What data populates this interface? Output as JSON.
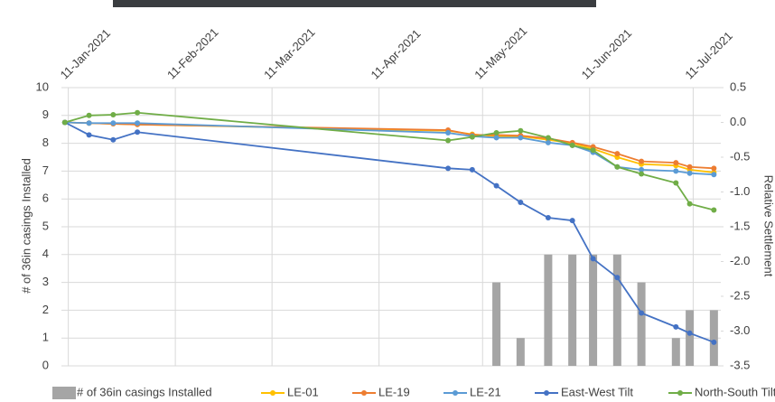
{
  "chart_data": {
    "type": "line",
    "y_label": "# of 36in casings Installed",
    "y2_label": "Relative Settlement",
    "x": [
      "2021-01-10",
      "2021-01-17",
      "2021-01-24",
      "2021-01-31",
      "2021-05-01",
      "2021-05-08",
      "2021-05-15",
      "2021-05-22",
      "2021-05-30",
      "2021-06-06",
      "2021-06-12",
      "2021-06-19",
      "2021-06-26",
      "2021-07-06",
      "2021-07-10",
      "2021-07-17"
    ],
    "xlim": [
      "2021-01-09",
      "2021-07-19"
    ],
    "xticks": [
      {
        "value": "2021-01-11",
        "label": "11-Jan-2021"
      },
      {
        "value": "2021-02-11",
        "label": "11-Feb-2021"
      },
      {
        "value": "2021-03-11",
        "label": "11-Mar-2021"
      },
      {
        "value": "2021-04-11",
        "label": "11-Apr-2021"
      },
      {
        "value": "2021-05-11",
        "label": "11-May-2021"
      },
      {
        "value": "2021-06-11",
        "label": "11-Jun-2021"
      },
      {
        "value": "2021-07-11",
        "label": "11-Jul-2021"
      }
    ],
    "ylim": [
      0,
      10
    ],
    "yticks": [
      0,
      1,
      2,
      3,
      4,
      5,
      6,
      7,
      8,
      9,
      10
    ],
    "y2lim": [
      -3.5,
      0.5
    ],
    "y2ticks": [
      0.5,
      {
        "value": 0,
        "label": "0.0"
      },
      -0.5,
      {
        "value": -1,
        "label": "-1.0"
      },
      -1.5,
      {
        "value": -2,
        "label": "-2.0"
      },
      -2.5,
      {
        "value": -3,
        "label": "-3.0"
      },
      -3.5
    ],
    "grid": true,
    "legend": "bottom",
    "series": [
      {
        "name": "# of 36in casings Installed",
        "type": "bar",
        "color": "#a5a5a5",
        "values": [
          0,
          0,
          0,
          0,
          0,
          0,
          3,
          1,
          4,
          4,
          4,
          4,
          3,
          1,
          2,
          2
        ]
      },
      {
        "name": "LE-01",
        "color": "#ffc000",
        "axis": "y2",
        "values": [
          0,
          -0.01,
          -0.02,
          -0.03,
          -0.12,
          -0.17,
          -0.2,
          -0.2,
          -0.25,
          -0.3,
          -0.38,
          -0.5,
          -0.6,
          -0.62,
          -0.68,
          -0.72
        ]
      },
      {
        "name": "LE-19",
        "color": "#ed7d31",
        "axis": "y2",
        "values": [
          0,
          -0.01,
          -0.02,
          -0.03,
          -0.11,
          -0.18,
          -0.18,
          -0.19,
          -0.23,
          -0.29,
          -0.35,
          -0.45,
          -0.56,
          -0.58,
          -0.64,
          -0.66
        ]
      },
      {
        "name": "LE-21",
        "color": "#5b9bd5",
        "axis": "y2",
        "values": [
          0,
          -0.01,
          -0.01,
          -0.01,
          -0.15,
          -0.2,
          -0.22,
          -0.22,
          -0.29,
          -0.33,
          -0.43,
          -0.64,
          -0.68,
          -0.7,
          -0.73,
          -0.75
        ]
      },
      {
        "name": "East-West Tilt",
        "color": "#4472c4",
        "axis": "y2",
        "values": [
          0,
          -0.18,
          -0.25,
          -0.14,
          -0.66,
          -0.68,
          -0.91,
          -1.15,
          -1.37,
          -1.41,
          -1.96,
          -2.23,
          -2.74,
          -2.94,
          -3.03,
          -3.16
        ]
      },
      {
        "name": "North-South Tilt",
        "color": "#70ad47",
        "axis": "y2",
        "values": [
          0,
          0.1,
          0.11,
          0.14,
          -0.26,
          -0.21,
          -0.15,
          -0.12,
          -0.22,
          -0.33,
          -0.4,
          -0.64,
          -0.74,
          -0.87,
          -1.17,
          -1.26
        ]
      }
    ]
  }
}
